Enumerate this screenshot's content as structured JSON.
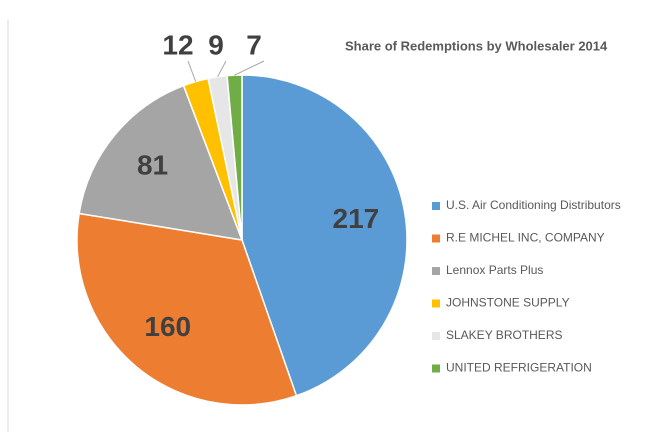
{
  "chart_data": {
    "type": "pie",
    "title": "Share of Redemptions by Wholesaler 2014",
    "categories": [
      "U.S. Air Conditioning Distributors",
      "R.E MICHEL INC, COMPANY",
      "Lennox Parts Plus",
      "JOHNSTONE SUPPLY",
      "SLAKEY BROTHERS",
      "UNITED REFRIGERATION"
    ],
    "values": [
      217,
      160,
      81,
      12,
      9,
      7
    ],
    "colors": [
      "#5b9bd5",
      "#ed7d31",
      "#a5a5a5",
      "#ffc000",
      "#e7e6e6",
      "#70ad47"
    ],
    "legend": "right"
  }
}
